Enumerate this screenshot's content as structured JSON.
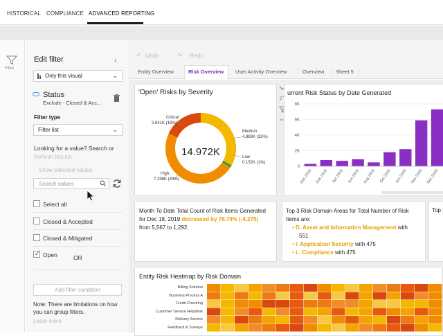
{
  "top_nav": {
    "tabs": [
      "HISTORICAL",
      "COMPLIANCE",
      "ADVANCED REPORTING"
    ],
    "active": "ADVANCED REPORTING"
  },
  "rail": {
    "label": "Filter",
    "icon": "funnel-icon"
  },
  "filter_panel": {
    "title": "Edit filter",
    "scope_value": "Only this visual",
    "field_name": "Status",
    "field_summary": "Exclude - Closed & Acc...",
    "filter_type_label": "Filter type",
    "filter_type_value": "Filter list",
    "lookup_prompt": "Looking for a value? Search or",
    "refresh_link": "Refresh this list.",
    "show_selected": "Show selected values",
    "search_placeholder": "Search values",
    "options": [
      {
        "label": "Select all",
        "checked": false
      },
      {
        "label": "Closed & Accepted",
        "checked": false
      },
      {
        "label": "Closed & Mitigated",
        "checked": false
      },
      {
        "label": "Open",
        "checked": true
      }
    ],
    "or_label": "OR",
    "add_condition": "Add filter condition",
    "note": "Note: There are limitations on how you can group filters.",
    "learn_more": "Learn more"
  },
  "toolbar": {
    "undo": "Undo",
    "redo": "Redo"
  },
  "sheet_tabs": [
    "Entity Overview",
    "Risk Overview",
    "User Activity Overview",
    "Overview",
    "Sheet 5"
  ],
  "active_sheet": "Risk Overview",
  "donut": {
    "title": "'Open' Risks by Severity",
    "center_value": "14.972K",
    "labels": {
      "critical_name": "Critical",
      "critical_val": "2.641K (18%)",
      "medium_name": "Medium",
      "medium_val": "4.883K (33%)",
      "low_name": "Low",
      "low_val": "0.152K (1%)",
      "high_name": "High",
      "high_val": "7.296K (49%)"
    },
    "colors": {
      "critical": "#d9480f",
      "medium": "#f5b800",
      "high": "#f08c00",
      "low": "#2f9e44"
    }
  },
  "bar_card": {
    "title": "urrent Risk Status by Date Generated",
    "icon": "bar-chart-icon"
  },
  "chart_data": {
    "type": "bar",
    "title": "urrent Risk Status by Date Generated",
    "categories": [
      "Dec 2018",
      "Feb 2019",
      "Apr 2019",
      "Jun 2019",
      "Aug 2019",
      "Oct 2019",
      "Jun 2019",
      "Nov 2019",
      "Dec 2019"
    ],
    "values": [
      0.3,
      0.8,
      0.7,
      0.9,
      0.5,
      1.8,
      2.2,
      5.9,
      7.3
    ],
    "y_ticks": [
      "0",
      "2K",
      "4K",
      "6K",
      "8K"
    ],
    "ylim": [
      0,
      8
    ],
    "color": "#8a2fc4"
  },
  "metric_card": {
    "line1": "Month To Date Total Count of Risk Items Generated",
    "line2_prefix": "for Dec 18, 2019 ",
    "highlight": "decreased by 76.79% (-4,275)",
    "line3": "from 5,567 to 1,292."
  },
  "domains_card": {
    "title_line1": "Top 3 Risk Domain Areas for Total Number of Risk",
    "title_line2": "Items are:",
    "items": [
      {
        "name": "D. Asset and Information Management",
        "suffix": " with",
        "cont": "551"
      },
      {
        "name": "I. Application Security",
        "suffix": " with 475",
        "cont": ""
      },
      {
        "name": "L. Compliance",
        "suffix": " with 475",
        "cont": ""
      }
    ]
  },
  "partial_card": {
    "title": "Top 3"
  },
  "heatmap": {
    "title": "Entity Risk Heatmap by Risk Domain",
    "rows": [
      "Billing Solution",
      "Business Process A",
      "Credit Checking",
      "Customer Service Helpdesk",
      "Delivery Service",
      "Feedback & Surveys"
    ]
  }
}
